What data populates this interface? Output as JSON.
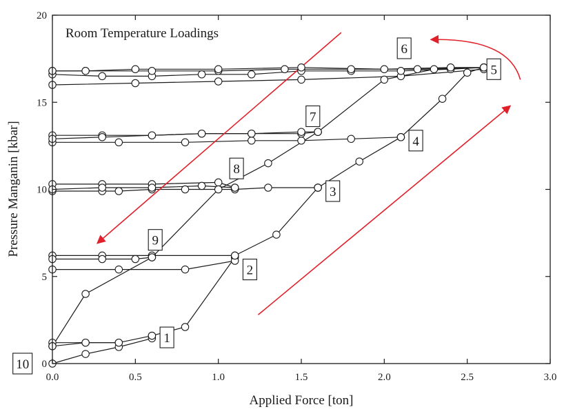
{
  "chart_data": {
    "type": "line",
    "title": "",
    "annotation_text": "Room Temperature Loadings",
    "xlabel": "Applied Force [ton]",
    "ylabel": "Pressure Manganin [kbar]",
    "xlim": [
      0,
      3
    ],
    "ylim": [
      0,
      20
    ],
    "x_ticks": [
      0.0,
      0.5,
      1.0,
      1.5,
      2.0,
      2.5,
      3.0
    ],
    "x_tick_labels": [
      "0.0",
      "0.5",
      "1.0",
      "1.5",
      "2.0",
      "2.5",
      "3.0"
    ],
    "y_ticks": [
      0,
      5,
      10,
      15,
      20
    ],
    "y_tick_labels": [
      "0",
      "5",
      "10",
      "15",
      "20"
    ],
    "grid": false,
    "colors": {
      "series": "#1a1a1a",
      "arrows": "#e0202a",
      "marker_fill": "#ffffff"
    },
    "series": [
      {
        "label": "1",
        "x": [
          0.0,
          0.2,
          0.4,
          0.6
        ],
        "y": [
          0.0,
          0.55,
          0.95,
          1.45
        ]
      },
      {
        "label": "1",
        "x": [
          0.6,
          0.4,
          0.2,
          0.0
        ],
        "y": [
          1.6,
          1.2,
          1.2,
          1.2
        ]
      },
      {
        "label": "2",
        "x": [
          0.6,
          0.8,
          1.1
        ],
        "y": [
          1.6,
          2.1,
          6.1
        ]
      },
      {
        "label": "2",
        "x": [
          1.1,
          0.8,
          0.4,
          0.0
        ],
        "y": [
          5.9,
          5.4,
          5.4,
          5.4
        ]
      },
      {
        "label": "3",
        "x": [
          0.0,
          0.3,
          0.6,
          1.1
        ],
        "y": [
          6.2,
          6.2,
          6.2,
          6.2
        ]
      },
      {
        "label": "3",
        "x": [
          1.1,
          1.35,
          1.6
        ],
        "y": [
          6.2,
          7.4,
          10.1
        ]
      },
      {
        "label": "3",
        "x": [
          1.6,
          1.3,
          1.1,
          0.8,
          0.6,
          0.4,
          0.3,
          0.0
        ],
        "y": [
          10.1,
          10.1,
          10.0,
          10.0,
          10.0,
          9.9,
          9.9,
          9.9
        ]
      },
      {
        "label": "4",
        "x": [
          0.0,
          0.3,
          0.6,
          1.0,
          1.1
        ],
        "y": [
          10.3,
          10.3,
          10.3,
          10.4,
          10.1
        ]
      },
      {
        "label": "4",
        "x": [
          1.6,
          1.85,
          2.1
        ],
        "y": [
          10.1,
          11.6,
          13.0
        ]
      },
      {
        "label": "4",
        "x": [
          2.1,
          1.8,
          1.5,
          1.2,
          0.8,
          0.4,
          0.0
        ],
        "y": [
          13.0,
          12.9,
          12.8,
          12.8,
          12.7,
          12.7,
          12.7
        ]
      },
      {
        "label": "5",
        "x": [
          0.0,
          0.3,
          0.6,
          0.9,
          1.2,
          1.5,
          1.6
        ],
        "y": [
          13.1,
          13.1,
          13.1,
          13.2,
          13.2,
          13.2,
          13.3
        ]
      },
      {
        "label": "5",
        "x": [
          2.1,
          2.35,
          2.5,
          2.6
        ],
        "y": [
          13.0,
          15.2,
          16.7,
          17.0
        ]
      },
      {
        "label": "5",
        "x": [
          2.6,
          2.1,
          1.5,
          1.0,
          0.5,
          0.0
        ],
        "y": [
          16.9,
          16.5,
          16.3,
          16.2,
          16.1,
          16.0
        ]
      },
      {
        "label": "6",
        "x": [
          0.0,
          0.3,
          0.6,
          0.9,
          1.2,
          1.5,
          1.8,
          2.1,
          2.4,
          2.6
        ],
        "y": [
          16.6,
          16.5,
          16.5,
          16.6,
          16.6,
          16.8,
          16.8,
          16.8,
          16.9,
          17.0
        ]
      },
      {
        "label": "6",
        "x": [
          2.6,
          2.2,
          1.8,
          1.4,
          1.0,
          0.6,
          0.2,
          0.0
        ],
        "y": [
          17.0,
          16.9,
          16.9,
          16.9,
          16.8,
          16.8,
          16.8,
          16.8
        ]
      },
      {
        "label": "7",
        "x": [
          0.0,
          0.3,
          0.6,
          0.9,
          1.2,
          1.5,
          1.6
        ],
        "y": [
          12.9,
          13.0,
          13.1,
          13.2,
          13.2,
          13.3,
          13.3
        ]
      },
      {
        "label": "8",
        "x": [
          0.0,
          0.3,
          0.6,
          0.9,
          1.1
        ],
        "y": [
          10.0,
          10.1,
          10.1,
          10.2,
          10.1
        ]
      },
      {
        "label": "9",
        "x": [
          0.0,
          0.3,
          0.5,
          0.6
        ],
        "y": [
          6.0,
          6.0,
          6.0,
          6.1
        ]
      },
      {
        "label": "10",
        "x": [
          0.0,
          0.2,
          0.4
        ],
        "y": [
          1.0,
          1.2,
          1.2
        ]
      },
      {
        "label": "",
        "x": [
          0.0,
          0.2,
          0.6,
          1.0,
          1.3,
          1.6,
          2.0,
          2.3,
          2.6
        ],
        "y": [
          1.0,
          4.0,
          6.1,
          10.0,
          11.5,
          13.3,
          16.3,
          16.9,
          17.0
        ]
      },
      {
        "label": "",
        "x": [
          0.0,
          0.2,
          0.5,
          1.0,
          1.5,
          2.0,
          2.4,
          2.6
        ],
        "y": [
          16.8,
          16.8,
          16.9,
          16.9,
          17.0,
          16.9,
          17.0,
          17.0
        ]
      }
    ],
    "point_labels": [
      {
        "text": "1",
        "x": 0.69,
        "y": 1.5
      },
      {
        "text": "2",
        "x": 1.19,
        "y": 5.4
      },
      {
        "text": "3",
        "x": 1.69,
        "y": 9.9
      },
      {
        "text": "4",
        "x": 2.19,
        "y": 12.8
      },
      {
        "text": "5",
        "x": 2.66,
        "y": 16.9
      },
      {
        "text": "6",
        "x": 2.12,
        "y": 18.1
      },
      {
        "text": "7",
        "x": 1.57,
        "y": 14.2
      },
      {
        "text": "8",
        "x": 1.11,
        "y": 11.2
      },
      {
        "text": "9",
        "x": 0.62,
        "y": 7.1
      },
      {
        "text": "10",
        "x": -0.18,
        "y": 0.0
      }
    ],
    "arrows": [
      {
        "x1": 1.74,
        "y1": 19.0,
        "x2": 0.27,
        "y2": 6.9
      },
      {
        "x1": 1.24,
        "y1": 2.8,
        "x2": 2.76,
        "y2": 14.8
      },
      {
        "curve": true,
        "x1": 2.82,
        "y1": 16.3,
        "cx": 2.75,
        "cy": 18.7,
        "x2": 2.28,
        "y2": 18.6
      }
    ]
  }
}
